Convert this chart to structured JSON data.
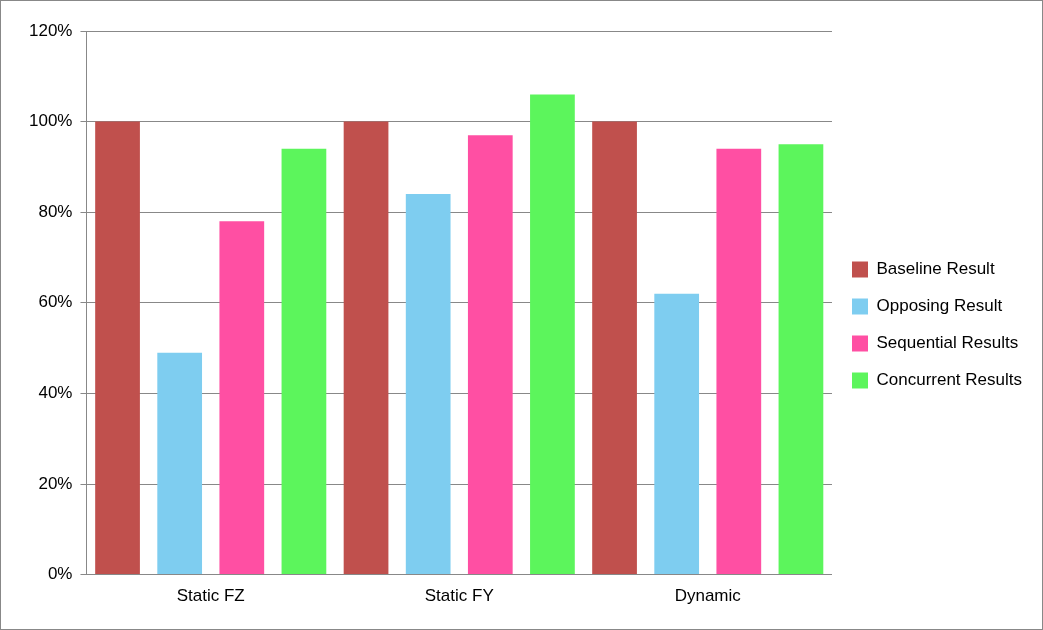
{
  "chart_data": {
    "type": "bar",
    "categories": [
      "Static FZ",
      "Static FY",
      "Dynamic"
    ],
    "series": [
      {
        "name": "Baseline Result",
        "color": "#c0504d",
        "values": [
          100,
          100,
          100
        ]
      },
      {
        "name": "Opposing Result",
        "color": "#7ecdf0",
        "values": [
          49,
          84,
          62
        ]
      },
      {
        "name": "Sequential Results",
        "color": "#ff4fa3",
        "values": [
          78,
          97,
          94
        ]
      },
      {
        "name": "Concurrent Results",
        "color": "#5cf55c",
        "values": [
          94,
          106,
          95
        ]
      }
    ],
    "ylim": [
      0,
      120
    ],
    "yticks": [
      {
        "value": 0,
        "label": "0%"
      },
      {
        "value": 20,
        "label": "20%"
      },
      {
        "value": 40,
        "label": "40%"
      },
      {
        "value": 60,
        "label": "60%"
      },
      {
        "value": 80,
        "label": "80%"
      },
      {
        "value": 100,
        "label": "100%"
      },
      {
        "value": 120,
        "label": "120%"
      }
    ],
    "grid": "y",
    "legend": "right"
  }
}
